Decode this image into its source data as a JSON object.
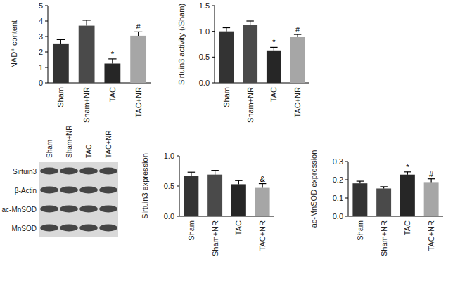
{
  "chart_data": [
    {
      "type": "bar",
      "y_label": "NAD⁺ content",
      "categories": [
        "Sham",
        "Sham+NR",
        "TAC",
        "TAC+NR"
      ],
      "values": [
        2.55,
        3.7,
        1.25,
        3.05
      ],
      "errors": [
        0.25,
        0.35,
        0.3,
        0.25
      ],
      "annotations": [
        null,
        null,
        "*",
        "#"
      ],
      "colors": [
        "#333333",
        "#4a4a4a",
        "#262626",
        "#a6a6a6"
      ],
      "ylim": [
        0,
        5
      ],
      "yticks": [
        0,
        1,
        2,
        3,
        4,
        5
      ],
      "grid": false
    },
    {
      "type": "bar",
      "y_label": "Sirtuin3 activity (/Sham)",
      "categories": [
        "Sham",
        "Sham+NR",
        "TAC",
        "TAC+NR"
      ],
      "values": [
        1.0,
        1.12,
        0.63,
        0.89
      ],
      "errors": [
        0.07,
        0.08,
        0.06,
        0.05
      ],
      "annotations": [
        null,
        null,
        "*",
        "#"
      ],
      "colors": [
        "#333333",
        "#4a4a4a",
        "#262626",
        "#a6a6a6"
      ],
      "ylim": [
        0,
        1.5
      ],
      "yticks": [
        {
          "value": 0,
          "label": "0.0"
        },
        {
          "value": 0.5,
          "label": "0.5"
        },
        {
          "value": 1,
          "label": "1.0"
        },
        {
          "value": 1.5,
          "label": "1.5"
        }
      ],
      "grid": false
    },
    {
      "type": "bar",
      "y_label": "Sirtuin3 expression",
      "categories": [
        "Sham",
        "Sham+NR",
        "TAC",
        "TAC+NR"
      ],
      "values": [
        0.67,
        0.69,
        0.53,
        0.47
      ],
      "errors": [
        0.06,
        0.07,
        0.06,
        0.07
      ],
      "annotations": [
        null,
        null,
        null,
        "&"
      ],
      "colors": [
        "#333333",
        "#4a4a4a",
        "#262626",
        "#a6a6a6"
      ],
      "ylim": [
        0,
        1
      ],
      "yticks": [
        {
          "value": 0,
          "label": "0.0"
        },
        {
          "value": 0.5,
          "label": "0.5"
        },
        {
          "value": 1,
          "label": "1.0"
        }
      ],
      "grid": false
    },
    {
      "type": "bar",
      "y_label": "ac-MnSOD expression",
      "categories": [
        "Sham",
        "Sham+NR",
        "TAC",
        "TAC+NR"
      ],
      "values": [
        0.18,
        0.152,
        0.228,
        0.187
      ],
      "errors": [
        0.012,
        0.01,
        0.015,
        0.018
      ],
      "annotations": [
        null,
        null,
        "*",
        "#"
      ],
      "colors": [
        "#333333",
        "#4a4a4a",
        "#262626",
        "#a6a6a6"
      ],
      "ylim": [
        0,
        0.3
      ],
      "yticks": [
        {
          "value": 0,
          "label": "0.0"
        },
        {
          "value": 0.1,
          "label": "0.1"
        },
        {
          "value": 0.2,
          "label": "0.2"
        },
        {
          "value": 0.3,
          "label": "0.3"
        }
      ],
      "grid": false
    }
  ],
  "blot": {
    "lanes": [
      "Sham",
      "Sham+NR",
      "TAC",
      "TAC+NR"
    ],
    "rows": [
      "Sirtuin3",
      "β-Actin",
      "ac-MnSOD",
      "MnSOD"
    ]
  }
}
